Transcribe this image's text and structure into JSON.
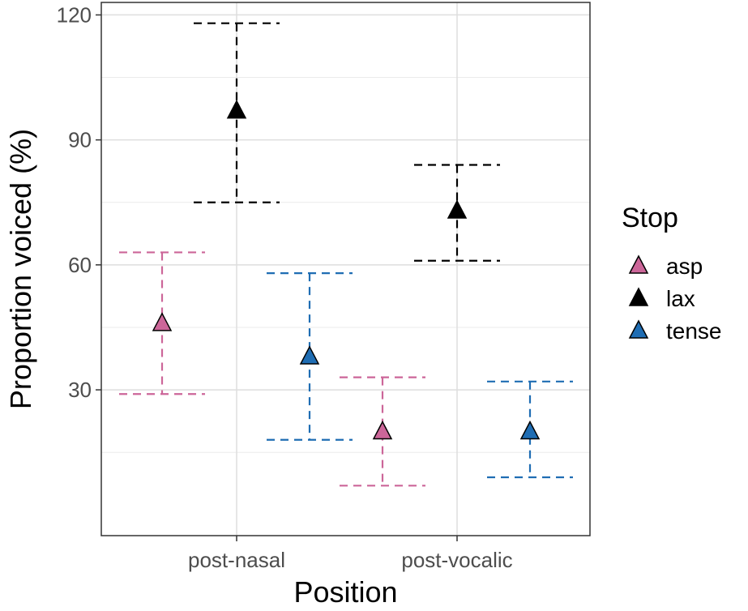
{
  "chart_data": {
    "type": "scatter",
    "subtype": "point-with-errorbars",
    "xlabel": "Position",
    "ylabel": "Proportion voiced (%)",
    "categories": [
      "post-nasal",
      "post-vocalic"
    ],
    "yticks": [
      30,
      60,
      90,
      120
    ],
    "ylim": [
      -5,
      123
    ],
    "grid": true,
    "legend": {
      "title": "Stop",
      "position": "right"
    },
    "series": [
      {
        "name": "asp",
        "color": "#cc6699",
        "points": [
          {
            "category": "post-nasal",
            "y": 46,
            "ymin": 29,
            "ymax": 63
          },
          {
            "category": "post-vocalic",
            "y": 20,
            "ymin": 7,
            "ymax": 33
          }
        ]
      },
      {
        "name": "lax",
        "color": "#000000",
        "points": [
          {
            "category": "post-nasal",
            "y": 97,
            "ymin": 75,
            "ymax": 118
          },
          {
            "category": "post-vocalic",
            "y": 73,
            "ymin": 61,
            "ymax": 84
          }
        ]
      },
      {
        "name": "tense",
        "color": "#1f6db3",
        "points": [
          {
            "category": "post-nasal",
            "y": 38,
            "ymin": 18,
            "ymax": 58
          },
          {
            "category": "post-vocalic",
            "y": 20,
            "ymin": 9,
            "ymax": 32
          }
        ]
      }
    ]
  }
}
